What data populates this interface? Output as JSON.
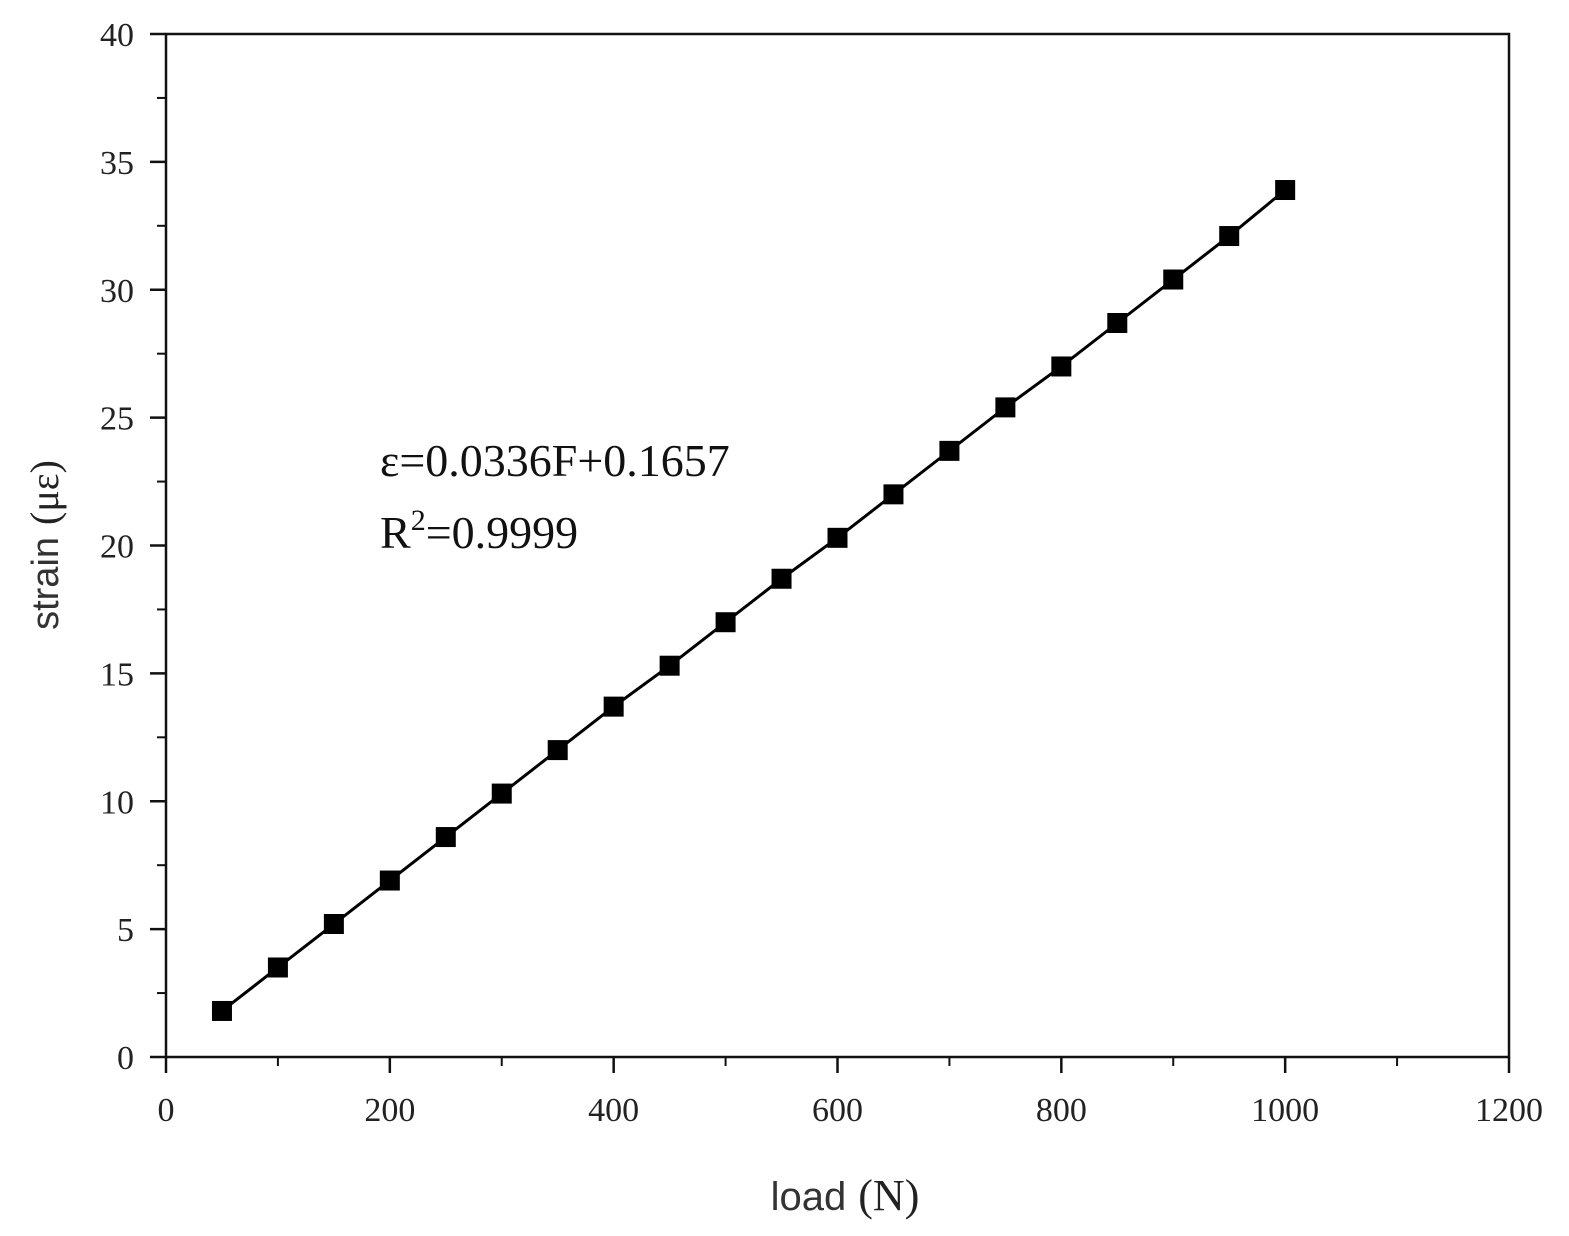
{
  "chart_data": {
    "type": "line",
    "xlabel_main": "load",
    "xlabel_unit": "(N)",
    "ylabel_main": "strain",
    "ylabel_unit": "(με)",
    "xlim": [
      0,
      1200
    ],
    "ylim": [
      0,
      40
    ],
    "x_ticks": [
      "0",
      "200",
      "400",
      "600",
      "800",
      "1000",
      "1200"
    ],
    "y_ticks": [
      "0",
      "5",
      "10",
      "15",
      "20",
      "25",
      "30",
      "35",
      "40"
    ],
    "grid": false,
    "annotation": {
      "equation": "ε=0.0336F+0.1657",
      "r2_prefix": "R",
      "r2_sup": "2",
      "r2_value": "=0.9999"
    },
    "series": [
      {
        "marker": "square",
        "color": "#000000",
        "x": [
          50,
          100,
          150,
          200,
          250,
          300,
          350,
          400,
          450,
          500,
          550,
          600,
          650,
          700,
          750,
          800,
          850,
          900,
          950,
          1000
        ],
        "y": [
          1.8,
          3.5,
          5.2,
          6.9,
          8.6,
          10.3,
          12.0,
          13.7,
          15.3,
          17.0,
          18.7,
          20.3,
          22.0,
          23.7,
          25.4,
          27.0,
          28.7,
          30.4,
          32.1,
          33.9
        ]
      }
    ]
  }
}
